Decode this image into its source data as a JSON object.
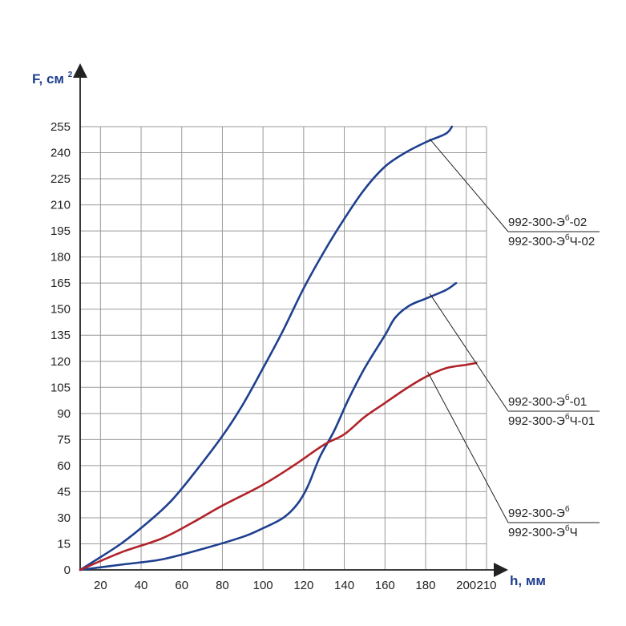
{
  "chart_data": {
    "type": "line",
    "xlabel": "h, мм",
    "ylabel_main": "F, см",
    "ylabel_sup": "2",
    "xlim": [
      10,
      210
    ],
    "ylim": [
      0,
      255
    ],
    "x_ticks": [
      20,
      40,
      60,
      80,
      100,
      120,
      140,
      160,
      180,
      200,
      210
    ],
    "y_ticks": [
      0,
      15,
      30,
      45,
      60,
      75,
      90,
      105,
      120,
      135,
      150,
      165,
      180,
      195,
      210,
      225,
      240,
      255
    ],
    "grid": true,
    "series": [
      {
        "color": "#1f3f8f",
        "points": [
          [
            10,
            0
          ],
          [
            30,
            15
          ],
          [
            45,
            29
          ],
          [
            55,
            40
          ],
          [
            65,
            54
          ],
          [
            80,
            77
          ],
          [
            90,
            95
          ],
          [
            100,
            116
          ],
          [
            110,
            138
          ],
          [
            120,
            162
          ],
          [
            130,
            183
          ],
          [
            140,
            202
          ],
          [
            150,
            219
          ],
          [
            160,
            232
          ],
          [
            170,
            240
          ],
          [
            180,
            246
          ],
          [
            190,
            251
          ],
          [
            193,
            255
          ]
        ]
      },
      {
        "color": "#1f3f8f",
        "points": [
          [
            10,
            0
          ],
          [
            30,
            3
          ],
          [
            50,
            6
          ],
          [
            70,
            12
          ],
          [
            90,
            19
          ],
          [
            100,
            24
          ],
          [
            110,
            30
          ],
          [
            117,
            38
          ],
          [
            122,
            48
          ],
          [
            128,
            65
          ],
          [
            135,
            80
          ],
          [
            142,
            98
          ],
          [
            150,
            116
          ],
          [
            160,
            135
          ],
          [
            165,
            145
          ],
          [
            172,
            152
          ],
          [
            180,
            156
          ],
          [
            190,
            161
          ],
          [
            195,
            165
          ]
        ]
      },
      {
        "color": "#b0232a",
        "points": [
          [
            10,
            0
          ],
          [
            30,
            10
          ],
          [
            50,
            18
          ],
          [
            65,
            27
          ],
          [
            80,
            37
          ],
          [
            100,
            49
          ],
          [
            115,
            60
          ],
          [
            130,
            72
          ],
          [
            140,
            78
          ],
          [
            150,
            88
          ],
          [
            160,
            96
          ],
          [
            170,
            104
          ],
          [
            180,
            111
          ],
          [
            190,
            116
          ],
          [
            200,
            118
          ],
          [
            205,
            119
          ]
        ]
      }
    ],
    "annotations": [
      {
        "line1_parts": [
          "992-300-Э",
          "б",
          "-02"
        ],
        "line2_parts": [
          "992-300-Э",
          "б",
          "Ч-02"
        ],
        "anchor": [
          182,
          248
        ]
      },
      {
        "line1_parts": [
          "992-300-Э",
          "б",
          "-01"
        ],
        "line2_parts": [
          "992-300-Э",
          "б",
          "Ч-01"
        ],
        "anchor": [
          182,
          159
        ]
      },
      {
        "line1_parts": [
          "992-300-Э",
          "б",
          ""
        ],
        "line2_parts": [
          "992-300-Э",
          "б",
          "Ч"
        ],
        "anchor": [
          181,
          114
        ]
      }
    ]
  }
}
